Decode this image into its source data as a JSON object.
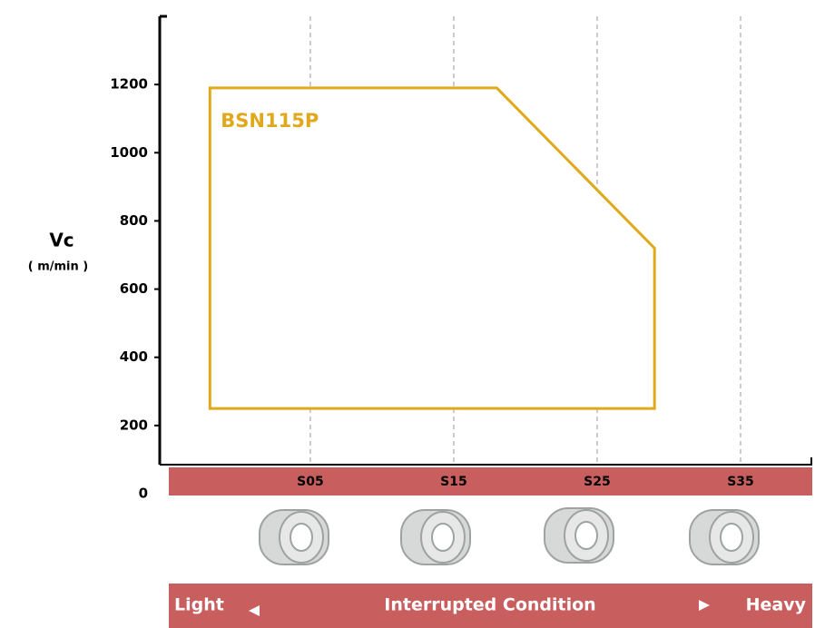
{
  "chart_data": {
    "type": "region",
    "y_label": "Vc",
    "y_unit": "( m/min )",
    "ylim": [
      0,
      1400
    ],
    "yticks": [
      0,
      200,
      400,
      600,
      800,
      1000,
      1200
    ],
    "xlim": [
      -5.5,
      40
    ],
    "xticks": [
      {
        "value": 5,
        "label": "S05"
      },
      {
        "value": 15,
        "label": "S15"
      },
      {
        "value": 25,
        "label": "S25"
      },
      {
        "value": 35,
        "label": "S35"
      }
    ],
    "grid": true,
    "series": [
      {
        "name": "BSN115P",
        "color": "#e0a91c",
        "x": [
          -2,
          -2,
          18,
          29,
          29
        ],
        "values": [
          250,
          1190,
          1190,
          720,
          250
        ]
      }
    ],
    "condition_bar": {
      "left": "Light",
      "center": "Interrupted Condition",
      "right": "Heavy"
    }
  }
}
